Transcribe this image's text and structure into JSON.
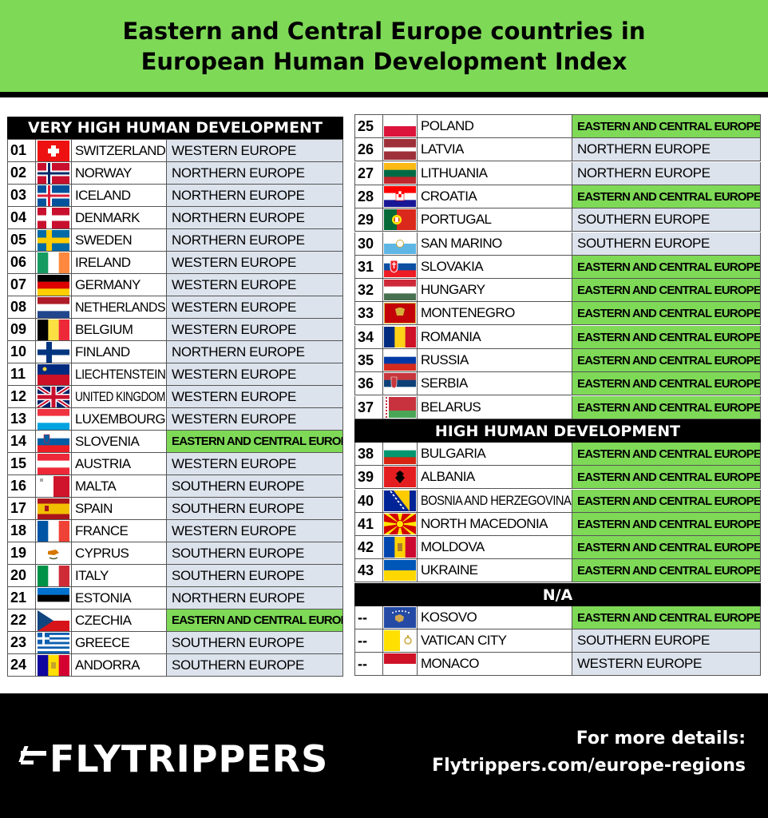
{
  "title_line1": "Eastern and Central Europe countries in",
  "title_line2": "European Human Development Index",
  "sections": {
    "very_high": "VERY HIGH HUMAN DEVELOPMENT",
    "high": "HIGH HUMAN DEVELOPMENT",
    "na": "N/A"
  },
  "colors": {
    "accent_green": "#7ed957",
    "region_gray": "#dde3ec",
    "black": "#000000"
  },
  "left_rows": [
    {
      "rank": "01",
      "country": "SWITZERLAND",
      "region": "WESTERN EUROPE",
      "ece": false,
      "flag": "switzerland"
    },
    {
      "rank": "02",
      "country": "NORWAY",
      "region": "NORTHERN EUROPE",
      "ece": false,
      "flag": "norway"
    },
    {
      "rank": "03",
      "country": "ICELAND",
      "region": "NORTHERN EUROPE",
      "ece": false,
      "flag": "iceland"
    },
    {
      "rank": "04",
      "country": "DENMARK",
      "region": "NORTHERN EUROPE",
      "ece": false,
      "flag": "denmark"
    },
    {
      "rank": "05",
      "country": "SWEDEN",
      "region": "NORTHERN EUROPE",
      "ece": false,
      "flag": "sweden"
    },
    {
      "rank": "06",
      "country": "IRELAND",
      "region": "WESTERN EUROPE",
      "ece": false,
      "flag": "ireland"
    },
    {
      "rank": "07",
      "country": "GERMANY",
      "region": "WESTERN EUROPE",
      "ece": false,
      "flag": "germany"
    },
    {
      "rank": "08",
      "country": "NETHERLANDS",
      "region": "WESTERN EUROPE",
      "ece": false,
      "flag": "netherlands"
    },
    {
      "rank": "09",
      "country": "BELGIUM",
      "region": "WESTERN EUROPE",
      "ece": false,
      "flag": "belgium"
    },
    {
      "rank": "10",
      "country": "FINLAND",
      "region": "NORTHERN EUROPE",
      "ece": false,
      "flag": "finland"
    },
    {
      "rank": "11",
      "country": "LIECHTENSTEIN",
      "region": "WESTERN EUROPE",
      "ece": false,
      "flag": "liechtenstein"
    },
    {
      "rank": "12",
      "country": "UNITED KINGDOM",
      "region": "WESTERN EUROPE",
      "ece": false,
      "flag": "uk"
    },
    {
      "rank": "13",
      "country": "LUXEMBOURG",
      "region": "WESTERN EUROPE",
      "ece": false,
      "flag": "luxembourg"
    },
    {
      "rank": "14",
      "country": "SLOVENIA",
      "region": "EASTERN AND CENTRAL EUROPE",
      "ece": true,
      "flag": "slovenia"
    },
    {
      "rank": "15",
      "country": "AUSTRIA",
      "region": "WESTERN EUROPE",
      "ece": false,
      "flag": "austria"
    },
    {
      "rank": "16",
      "country": "MALTA",
      "region": "SOUTHERN EUROPE",
      "ece": false,
      "flag": "malta"
    },
    {
      "rank": "17",
      "country": "SPAIN",
      "region": "SOUTHERN EUROPE",
      "ece": false,
      "flag": "spain"
    },
    {
      "rank": "18",
      "country": "FRANCE",
      "region": "WESTERN EUROPE",
      "ece": false,
      "flag": "france"
    },
    {
      "rank": "19",
      "country": "CYPRUS",
      "region": "SOUTHERN EUROPE",
      "ece": false,
      "flag": "cyprus"
    },
    {
      "rank": "20",
      "country": "ITALY",
      "region": "SOUTHERN EUROPE",
      "ece": false,
      "flag": "italy"
    },
    {
      "rank": "21",
      "country": "ESTONIA",
      "region": "NORTHERN EUROPE",
      "ece": false,
      "flag": "estonia"
    },
    {
      "rank": "22",
      "country": "CZECHIA",
      "region": "EASTERN AND CENTRAL EUROPE",
      "ece": true,
      "flag": "czechia"
    },
    {
      "rank": "23",
      "country": "GREECE",
      "region": "SOUTHERN EUROPE",
      "ece": false,
      "flag": "greece"
    },
    {
      "rank": "24",
      "country": "ANDORRA",
      "region": "SOUTHERN EUROPE",
      "ece": false,
      "flag": "andorra"
    }
  ],
  "right_rows_very_high": [
    {
      "rank": "25",
      "country": "POLAND",
      "region": "EASTERN AND CENTRAL EUROPE",
      "ece": true,
      "flag": "poland"
    },
    {
      "rank": "26",
      "country": "LATVIA",
      "region": "NORTHERN EUROPE",
      "ece": false,
      "flag": "latvia"
    },
    {
      "rank": "27",
      "country": "LITHUANIA",
      "region": "NORTHERN EUROPE",
      "ece": false,
      "flag": "lithuania"
    },
    {
      "rank": "28",
      "country": "CROATIA",
      "region": "EASTERN AND CENTRAL EUROPE",
      "ece": true,
      "flag": "croatia"
    },
    {
      "rank": "29",
      "country": "PORTUGAL",
      "region": "SOUTHERN EUROPE",
      "ece": false,
      "flag": "portugal"
    },
    {
      "rank": "30",
      "country": "SAN MARINO",
      "region": "SOUTHERN EUROPE",
      "ece": false,
      "flag": "sanmarino"
    },
    {
      "rank": "31",
      "country": "SLOVAKIA",
      "region": "EASTERN AND CENTRAL EUROPE",
      "ece": true,
      "flag": "slovakia"
    },
    {
      "rank": "32",
      "country": "HUNGARY",
      "region": "EASTERN AND CENTRAL EUROPE",
      "ece": true,
      "flag": "hungary"
    },
    {
      "rank": "33",
      "country": "MONTENEGRO",
      "region": "EASTERN AND CENTRAL EUROPE",
      "ece": true,
      "flag": "montenegro"
    },
    {
      "rank": "34",
      "country": "ROMANIA",
      "region": "EASTERN AND CENTRAL EUROPE",
      "ece": true,
      "flag": "romania"
    },
    {
      "rank": "35",
      "country": "RUSSIA",
      "region": "EASTERN AND CENTRAL EUROPE",
      "ece": true,
      "flag": "russia"
    },
    {
      "rank": "36",
      "country": "SERBIA",
      "region": "EASTERN AND CENTRAL EUROPE",
      "ece": true,
      "flag": "serbia"
    },
    {
      "rank": "37",
      "country": "BELARUS",
      "region": "EASTERN AND CENTRAL EUROPE",
      "ece": true,
      "flag": "belarus"
    }
  ],
  "right_rows_high": [
    {
      "rank": "38",
      "country": "BULGARIA",
      "region": "EASTERN AND CENTRAL EUROPE",
      "ece": true,
      "flag": "bulgaria"
    },
    {
      "rank": "39",
      "country": "ALBANIA",
      "region": "EASTERN AND CENTRAL EUROPE",
      "ece": true,
      "flag": "albania"
    },
    {
      "rank": "40",
      "country": "BOSNIA AND HERZEGOVINA",
      "region": "EASTERN AND CENTRAL EUROPE",
      "ece": true,
      "flag": "bosnia"
    },
    {
      "rank": "41",
      "country": "NORTH MACEDONIA",
      "region": "EASTERN AND CENTRAL EUROPE",
      "ece": true,
      "flag": "macedonia"
    },
    {
      "rank": "42",
      "country": "MOLDOVA",
      "region": "EASTERN AND CENTRAL EUROPE",
      "ece": true,
      "flag": "moldova"
    },
    {
      "rank": "43",
      "country": "UKRAINE",
      "region": "EASTERN AND CENTRAL EUROPE",
      "ece": true,
      "flag": "ukraine"
    }
  ],
  "right_rows_na": [
    {
      "rank": "--",
      "country": "KOSOVO",
      "region": "EASTERN AND CENTRAL EUROPE",
      "ece": true,
      "flag": "kosovo"
    },
    {
      "rank": "--",
      "country": "VATICAN CITY",
      "region": "SOUTHERN EUROPE",
      "ece": false,
      "flag": "vatican"
    },
    {
      "rank": "--",
      "country": "MONACO",
      "region": "WESTERN EUROPE",
      "ece": false,
      "flag": "monaco"
    }
  ],
  "footer": {
    "brand": "FLYTRIPPERS",
    "logo_icon": "airplane-icon",
    "more_line1": "For more details:",
    "more_line2": "Flytrippers.com/europe-regions"
  }
}
